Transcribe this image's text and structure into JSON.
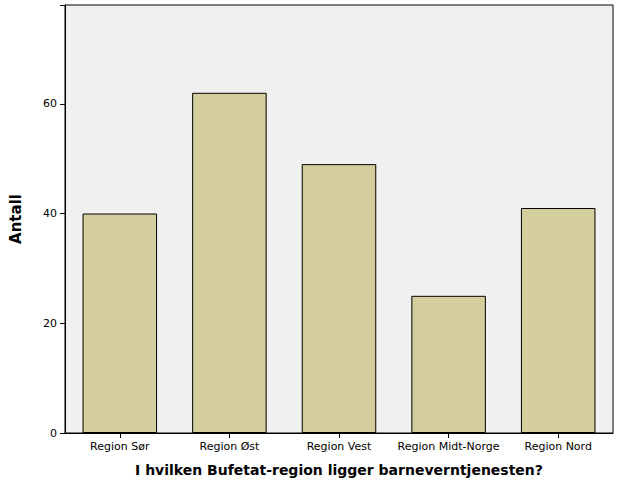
{
  "chart_data": {
    "type": "bar",
    "x_label": "I hvilken Bufetat-region ligger barneverntjenesten?",
    "y_label": "Antall",
    "categories": [
      "Region Sør",
      "Region Øst",
      "Region Vest",
      "Region Midt-Norge",
      "Region Nord"
    ],
    "values": [
      40,
      62,
      49,
      25,
      41
    ],
    "color": "#d3ce9b",
    "ylim": [
      0,
      78
    ],
    "yticks": [
      0,
      20,
      40,
      60
    ],
    "grid": false
  }
}
